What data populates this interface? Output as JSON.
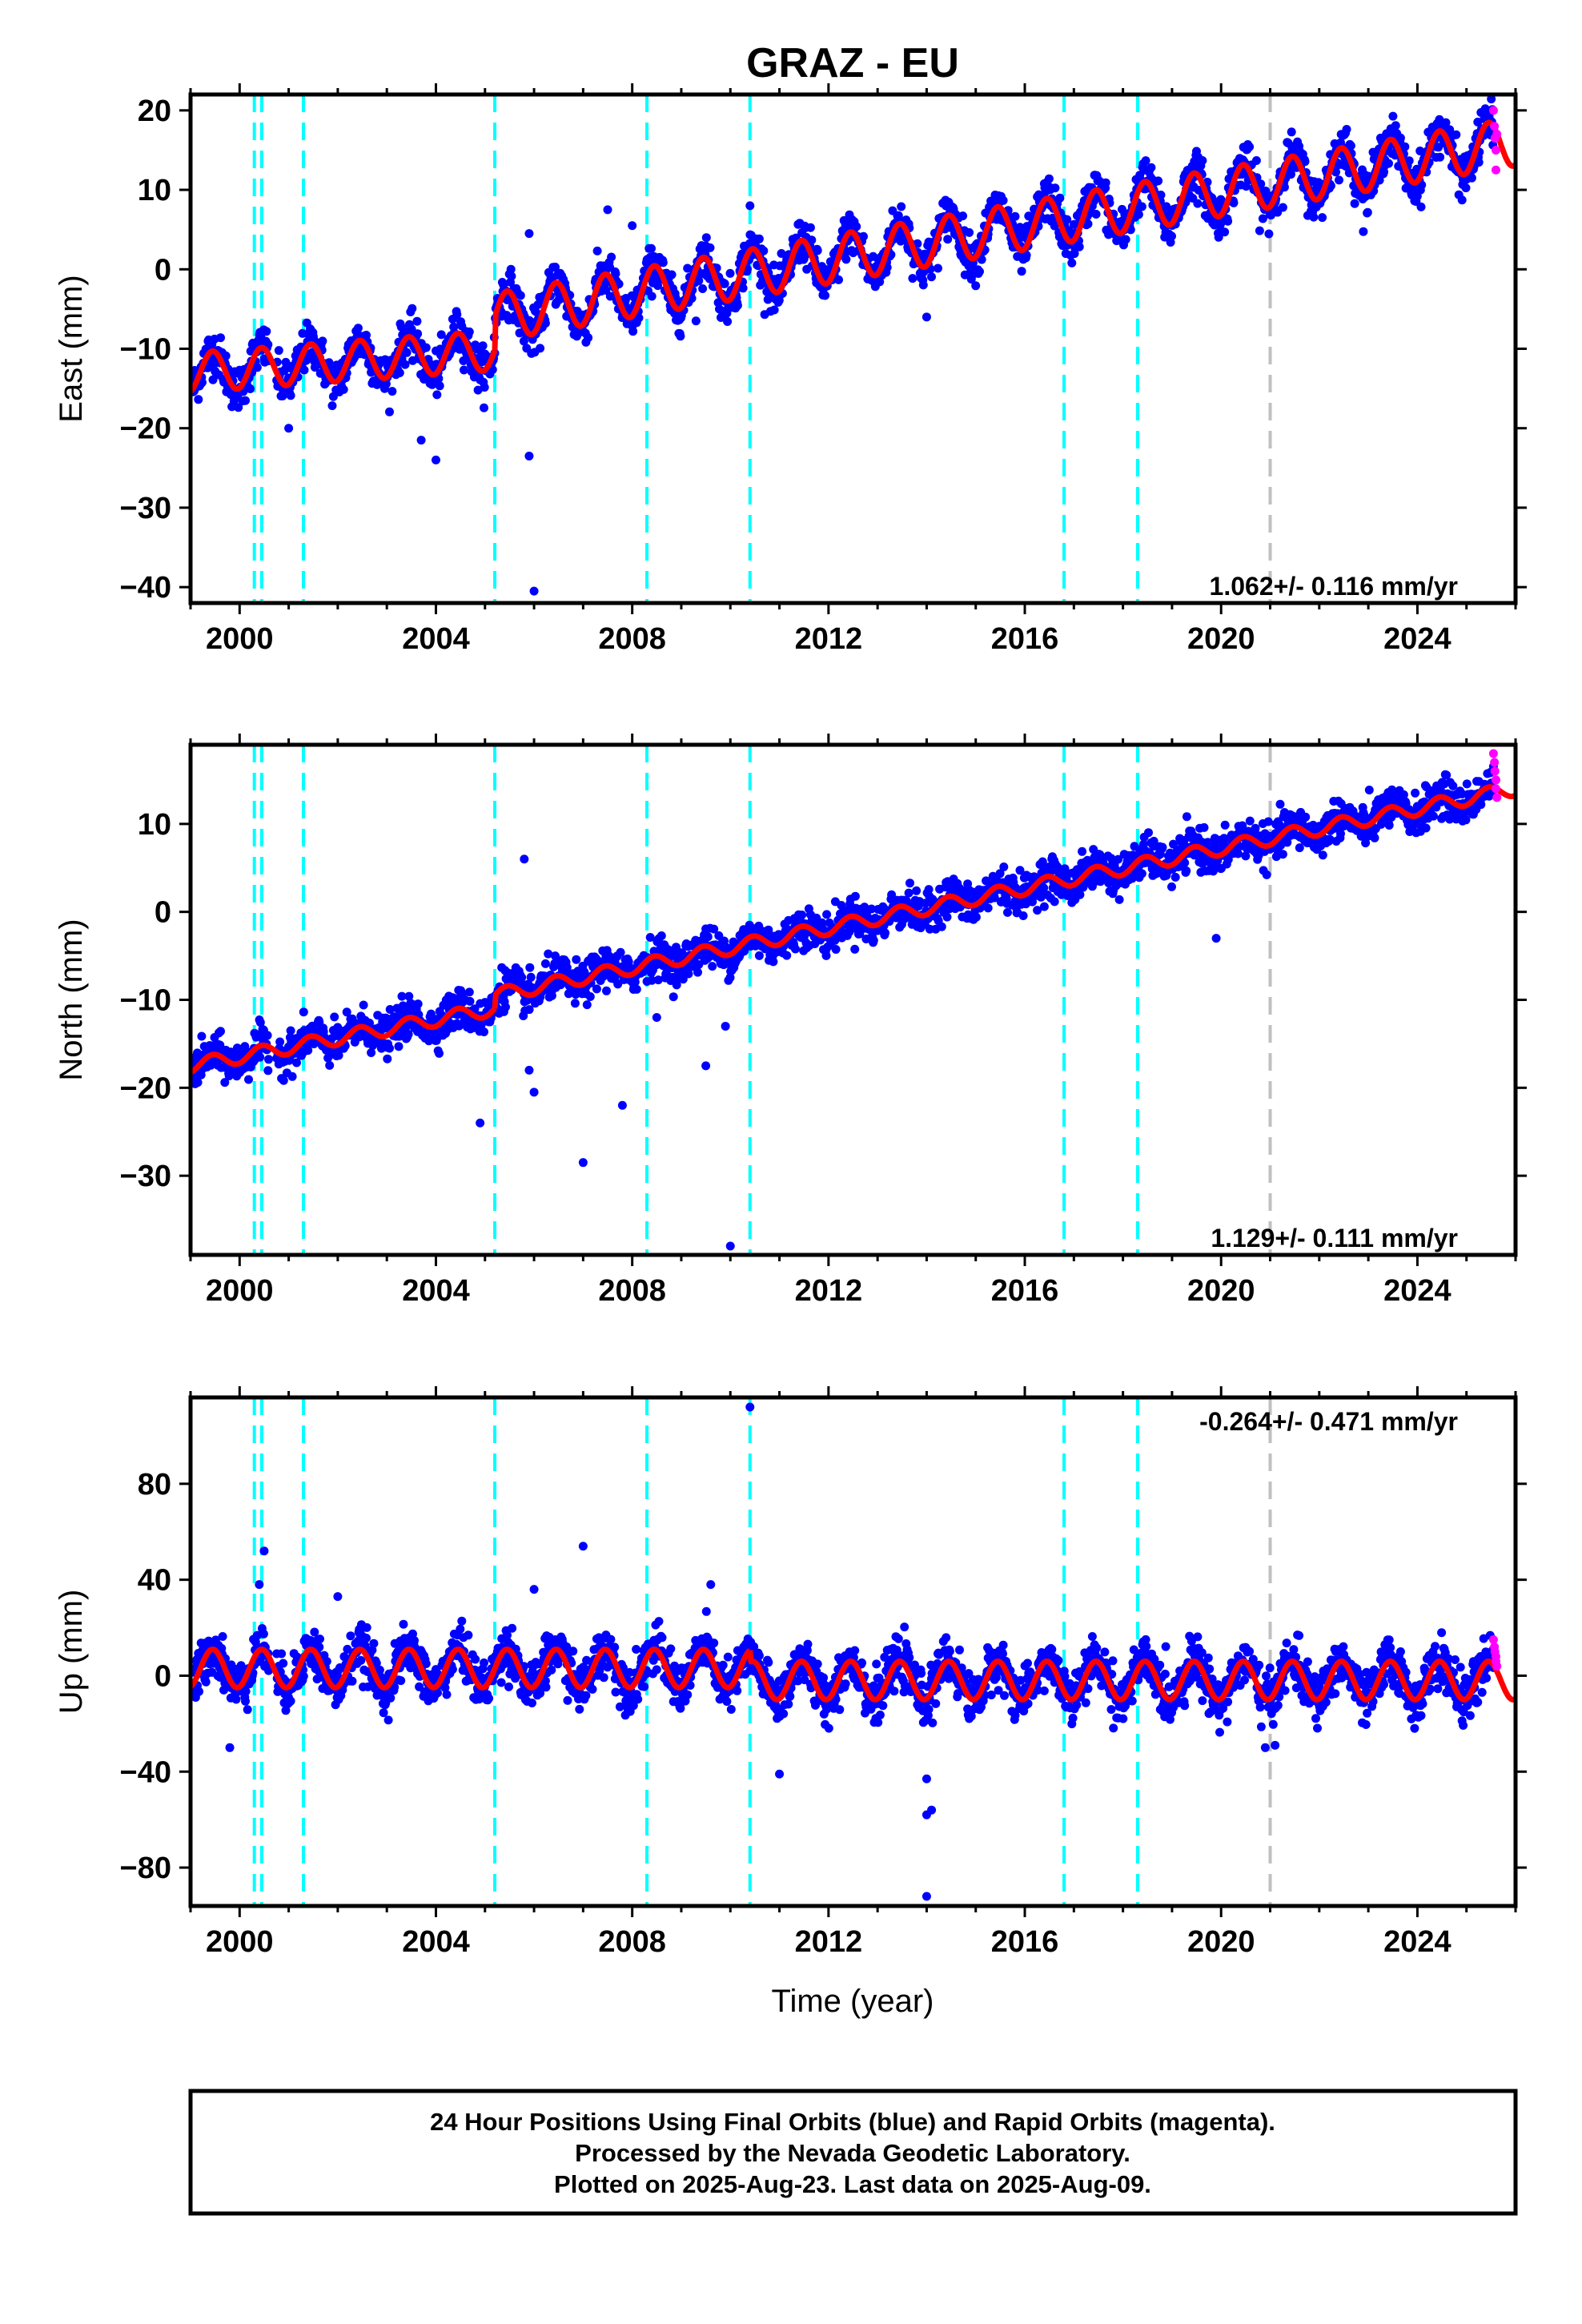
{
  "title": "GRAZ - EU",
  "xlabel": "Time (year)",
  "footer": [
    "24 Hour Positions Using Final Orbits (blue) and Rapid Orbits (magenta).",
    "Processed by the Nevada Geodetic Laboratory.",
    "Plotted on 2025-Aug-23. Last data on 2025-Aug-09."
  ],
  "colors": {
    "final_orbits": "#0000ff",
    "rapid_orbits": "#ff00ff",
    "model_fit": "#ff0000",
    "equipment_change": "#00ffff",
    "other_event": "#c0c0c0"
  },
  "chart_data": [
    {
      "type": "scatter",
      "ylabel": "East (mm)",
      "rate": "1.062+/- 0.116 mm/yr",
      "xlim": [
        1999.0,
        2026.0
      ],
      "ylim": [
        -42,
        22
      ],
      "xticks": [
        2000,
        2004,
        2008,
        2012,
        2016,
        2020,
        2024
      ],
      "yticks": [
        20,
        10,
        0,
        -10,
        -20,
        -30,
        -40
      ],
      "grid": false,
      "model": {
        "segments": [
          {
            "from": 1999.0,
            "to": 2005.2,
            "start": -13.0,
            "rate": 0.45,
            "amp": 2.5
          },
          {
            "from": 2005.2,
            "to": 2026.0,
            "start": -6.0,
            "rate": 1.06,
            "amp": 3.0
          }
        ]
      },
      "scatter_spread": 2.5,
      "outliers": [
        [
          2005.9,
          -23.5
        ],
        [
          2006.0,
          -40.5
        ],
        [
          2004.0,
          -24.0
        ],
        [
          2003.7,
          -21.5
        ],
        [
          2001.0,
          -20.0
        ],
        [
          2010.4,
          8.0
        ],
        [
          2007.5,
          7.5
        ],
        [
          2008.0,
          5.5
        ],
        [
          2005.9,
          4.5
        ],
        [
          2014.0,
          -6.0
        ],
        [
          2009.3,
          -6.5
        ]
      ],
      "rapid": [
        [
          2025.55,
          20.0
        ],
        [
          2025.57,
          18.0
        ],
        [
          2025.58,
          16.5
        ],
        [
          2025.6,
          15.0
        ],
        [
          2025.6,
          12.5
        ],
        [
          2025.62,
          17.0
        ]
      ],
      "events_cyan": [
        2000.3,
        2000.45,
        2001.3,
        2005.2,
        2008.3,
        2010.4,
        2016.8,
        2018.3
      ],
      "events_gray": [
        2021.0
      ]
    },
    {
      "type": "scatter",
      "ylabel": "North (mm)",
      "rate": "1.129+/- 0.111 mm/yr",
      "xlim": [
        1999.0,
        2026.0
      ],
      "ylim": [
        -39,
        19
      ],
      "xticks": [
        2000,
        2004,
        2008,
        2012,
        2016,
        2020,
        2024
      ],
      "yticks": [
        10,
        0,
        -10,
        -20,
        -30
      ],
      "grid": false,
      "model": {
        "segments": [
          {
            "from": 1999.0,
            "to": 2005.2,
            "start": -17.5,
            "rate": 1.05,
            "amp": 0.8
          },
          {
            "from": 2005.2,
            "to": 2026.0,
            "start": -9.5,
            "rate": 1.13,
            "amp": 0.8
          }
        ]
      },
      "scatter_spread": 2.0,
      "outliers": [
        [
          2004.9,
          -24.0
        ],
        [
          2005.8,
          6.0
        ],
        [
          2006.0,
          -20.5
        ],
        [
          2007.0,
          -28.5
        ],
        [
          2007.8,
          -22.0
        ],
        [
          2010.0,
          -38.0
        ],
        [
          2009.5,
          -17.5
        ],
        [
          2009.9,
          -13.0
        ],
        [
          2019.9,
          -3.0
        ],
        [
          2005.9,
          -18.0
        ],
        [
          2008.5,
          -12.0
        ]
      ],
      "rapid": [
        [
          2025.55,
          18.0
        ],
        [
          2025.57,
          17.0
        ],
        [
          2025.58,
          16.0
        ],
        [
          2025.6,
          15.0
        ],
        [
          2025.6,
          14.0
        ],
        [
          2025.62,
          13.0
        ]
      ],
      "events_cyan": [
        2000.3,
        2000.45,
        2001.3,
        2005.2,
        2008.3,
        2010.4,
        2016.8,
        2018.3
      ],
      "events_gray": [
        2021.0
      ]
    },
    {
      "type": "scatter",
      "ylabel": "Up (mm)",
      "rate": "-0.264+/- 0.471 mm/yr",
      "xlim": [
        1999.0,
        2026.0
      ],
      "ylim": [
        -96,
        116
      ],
      "xticks": [
        2000,
        2004,
        2008,
        2012,
        2016,
        2020,
        2024
      ],
      "yticks": [
        80,
        40,
        0,
        -40,
        -80
      ],
      "grid": false,
      "model": {
        "segments": [
          {
            "from": 1999.0,
            "to": 2010.4,
            "start": 3.0,
            "rate": 0.0,
            "amp": 8.0
          },
          {
            "from": 2010.4,
            "to": 2026.0,
            "start": -2.0,
            "rate": 0.0,
            "amp": 8.0
          }
        ]
      },
      "scatter_spread": 9.0,
      "outliers": [
        [
          2010.4,
          112.0
        ],
        [
          2007.0,
          54.0
        ],
        [
          2000.5,
          52.0
        ],
        [
          2006.0,
          36.0
        ],
        [
          2009.6,
          38.0
        ],
        [
          2014.0,
          -92.0
        ],
        [
          2014.0,
          -58.0
        ],
        [
          2014.1,
          -56.0
        ],
        [
          2014.0,
          -43.0
        ],
        [
          2011.0,
          -41.0
        ],
        [
          1999.8,
          -30.0
        ],
        [
          2020.9,
          -30.0
        ],
        [
          2021.1,
          -29.0
        ],
        [
          2002.0,
          33.0
        ],
        [
          2000.4,
          38.0
        ]
      ],
      "rapid": [
        [
          2025.55,
          15.0
        ],
        [
          2025.57,
          12.0
        ],
        [
          2025.58,
          10.0
        ],
        [
          2025.6,
          8.0
        ],
        [
          2025.6,
          6.0
        ],
        [
          2025.62,
          4.0
        ]
      ],
      "events_cyan": [
        2000.3,
        2000.45,
        2001.3,
        2005.2,
        2008.3,
        2010.4,
        2016.8,
        2018.3
      ],
      "events_gray": [
        2021.0
      ]
    }
  ]
}
